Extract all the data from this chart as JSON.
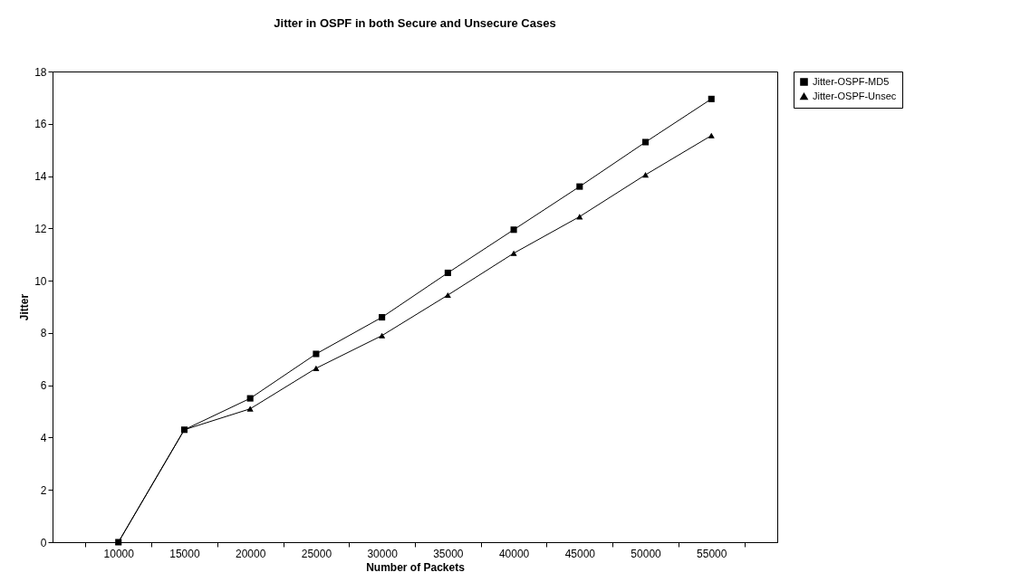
{
  "chart_data": {
    "type": "line",
    "title": "Jitter in OSPF in both Secure and Unsecure Cases",
    "xlabel": "Number of Packets",
    "ylabel": "Jitter",
    "categories": [
      "10000",
      "15000",
      "20000",
      "25000",
      "30000",
      "35000",
      "40000",
      "45000",
      "50000",
      "55000"
    ],
    "series": [
      {
        "name": "Jitter-OSPF-MD5",
        "color": "#000000",
        "marker": "square",
        "values": [
          0,
          4.3,
          5.5,
          7.2,
          8.6,
          10.3,
          11.95,
          13.6,
          15.3,
          16.95
        ]
      },
      {
        "name": "Jitter-OSPF-Unsec",
        "color": "#000000",
        "marker": "triangle",
        "values": [
          0,
          4.3,
          5.1,
          6.65,
          7.9,
          9.45,
          11.05,
          12.45,
          14.05,
          15.55
        ]
      }
    ],
    "ylim": [
      0,
      18
    ],
    "yticks": [
      0,
      2,
      4,
      6,
      8,
      10,
      12,
      14,
      16,
      18
    ],
    "grid": false,
    "legend": "right",
    "line_style": "solid"
  }
}
